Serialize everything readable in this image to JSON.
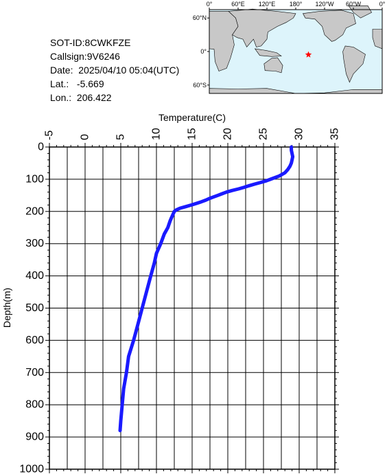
{
  "info": {
    "sot_id": "SOT-ID:8CWKFZE",
    "callsign": "Callsign:9V6246",
    "date": "Date:  2025/04/10 05:04(UTC)",
    "lat": "Lat.:   -5.669",
    "lon": "Lon.:  206.422"
  },
  "map": {
    "lon_labels": [
      "0°",
      "60°E",
      "120°E",
      "180°",
      "120°W",
      "60°W",
      "0°"
    ],
    "lat_labels": [
      "60°N",
      "0°",
      "60°S"
    ],
    "marker": {
      "lat": -5.669,
      "lon": 206.422,
      "color": "#ff0000",
      "symbol": "star"
    },
    "ocean_color": "#ddf4fb",
    "land_color": "#c8c8c8"
  },
  "chart_data": {
    "type": "line",
    "xlabel": "Temperature(C)",
    "ylabel": "Depth(m)",
    "xlim": [
      -5,
      35
    ],
    "ylim": [
      1000,
      0
    ],
    "x_ticks": [
      "-5",
      "0",
      "5",
      "10",
      "15",
      "20",
      "25",
      "30",
      "35"
    ],
    "y_ticks": [
      "0",
      "100",
      "200",
      "300",
      "400",
      "500",
      "600",
      "700",
      "800",
      "900",
      "1000"
    ],
    "grid": true,
    "line_color": "#1a1aff",
    "series": [
      {
        "depth": [
          0,
          10,
          20,
          30,
          40,
          50,
          60,
          70,
          80,
          90,
          100,
          105,
          110,
          115,
          120,
          125,
          130,
          135,
          140,
          145,
          150,
          155,
          160,
          165,
          170,
          175,
          180,
          185,
          190,
          195,
          200,
          205,
          210,
          220,
          230,
          250,
          270,
          300,
          330,
          360,
          400,
          450,
          500,
          550,
          600,
          650,
          700,
          750,
          800,
          850,
          880
        ],
        "temperature": [
          28.9,
          28.9,
          29.0,
          29.1,
          29.0,
          28.9,
          28.7,
          28.4,
          28.0,
          27.2,
          26.0,
          25.4,
          24.6,
          23.8,
          23.0,
          22.3,
          21.5,
          20.6,
          19.8,
          19.2,
          18.6,
          18.0,
          17.4,
          16.9,
          16.3,
          15.6,
          14.9,
          14.1,
          13.3,
          12.8,
          12.5,
          12.4,
          12.3,
          12.1,
          11.9,
          11.6,
          11.1,
          10.6,
          10.0,
          9.7,
          9.2,
          8.6,
          8.0,
          7.4,
          6.8,
          6.1,
          5.8,
          5.4,
          5.2,
          5.0,
          4.9
        ]
      }
    ]
  }
}
